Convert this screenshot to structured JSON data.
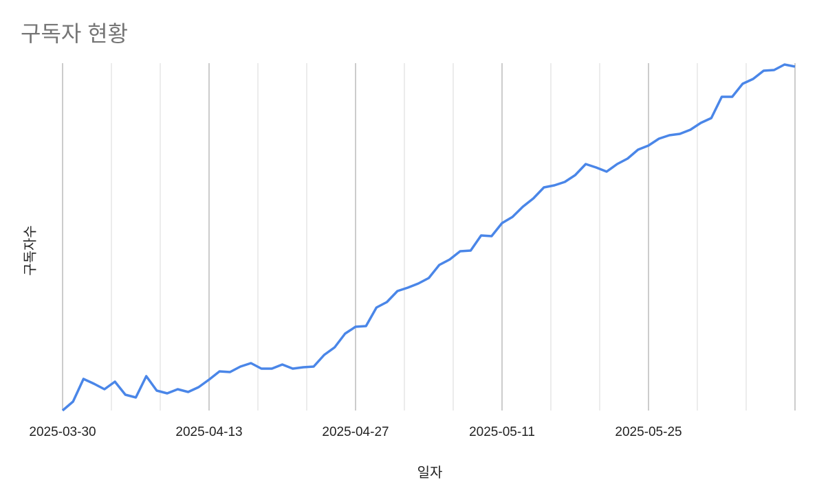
{
  "chart_data": {
    "type": "line",
    "title": "구독자 현황",
    "xlabel": "일자",
    "ylabel": "구독자수",
    "y_tick_labels_shown": false,
    "grid": "vertical",
    "legend": "none",
    "ylim": [
      0,
      101.2
    ],
    "xlim": [
      "2025-03-30",
      "2025-06-08"
    ],
    "x_tick_labels": [
      "2025-03-30",
      "2025-04-13",
      "2025-04-27",
      "2025-05-11",
      "2025-05-25"
    ],
    "colors": {
      "line": "#4a86e8",
      "major_grid": "#cccccc",
      "minor_grid": "#e6e6e6",
      "title": "#757575"
    },
    "x": [
      "2025-03-30",
      "2025-03-31",
      "2025-04-01",
      "2025-04-02",
      "2025-04-03",
      "2025-04-04",
      "2025-04-05",
      "2025-04-06",
      "2025-04-07",
      "2025-04-08",
      "2025-04-09",
      "2025-04-10",
      "2025-04-11",
      "2025-04-12",
      "2025-04-13",
      "2025-04-14",
      "2025-04-15",
      "2025-04-16",
      "2025-04-17",
      "2025-04-18",
      "2025-04-19",
      "2025-04-20",
      "2025-04-21",
      "2025-04-22",
      "2025-04-23",
      "2025-04-24",
      "2025-04-25",
      "2025-04-26",
      "2025-04-27",
      "2025-04-28",
      "2025-04-29",
      "2025-04-30",
      "2025-05-01",
      "2025-05-02",
      "2025-05-03",
      "2025-05-04",
      "2025-05-05",
      "2025-05-06",
      "2025-05-07",
      "2025-05-08",
      "2025-05-09",
      "2025-05-10",
      "2025-05-11",
      "2025-05-12",
      "2025-05-13",
      "2025-05-14",
      "2025-05-15",
      "2025-05-16",
      "2025-05-17",
      "2025-05-18",
      "2025-05-19",
      "2025-05-20",
      "2025-05-21",
      "2025-05-22",
      "2025-05-23",
      "2025-05-24",
      "2025-05-25",
      "2025-05-26",
      "2025-05-27",
      "2025-05-28",
      "2025-05-29",
      "2025-05-30",
      "2025-05-31",
      "2025-06-01",
      "2025-06-02",
      "2025-06-03",
      "2025-06-04",
      "2025-06-05",
      "2025-06-06",
      "2025-06-07",
      "2025-06-08"
    ],
    "series": [
      {
        "values": [
          0,
          2.6,
          9.2,
          7.8,
          6.2,
          8.4,
          4.6,
          3.8,
          10,
          5.8,
          5,
          6.2,
          5.4,
          6.8,
          9,
          11.4,
          11.2,
          12.8,
          13.8,
          12.2,
          12.2,
          13.4,
          12.2,
          12.6,
          12.8,
          16.2,
          18.4,
          22.4,
          24.4,
          24.6,
          30,
          31.6,
          34.8,
          35.8,
          37,
          38.6,
          42.4,
          44,
          46.4,
          46.6,
          51,
          50.8,
          54.6,
          56.4,
          59.4,
          61.8,
          65,
          65.6,
          66.6,
          68.6,
          71.8,
          70.8,
          69.6,
          71.8,
          73.4,
          76,
          77.2,
          79.2,
          80.2,
          80.6,
          81.8,
          83.8,
          85.2,
          91.4,
          91.4,
          95.2,
          96.6,
          99,
          99.2,
          100.8,
          100.2
        ]
      }
    ]
  }
}
